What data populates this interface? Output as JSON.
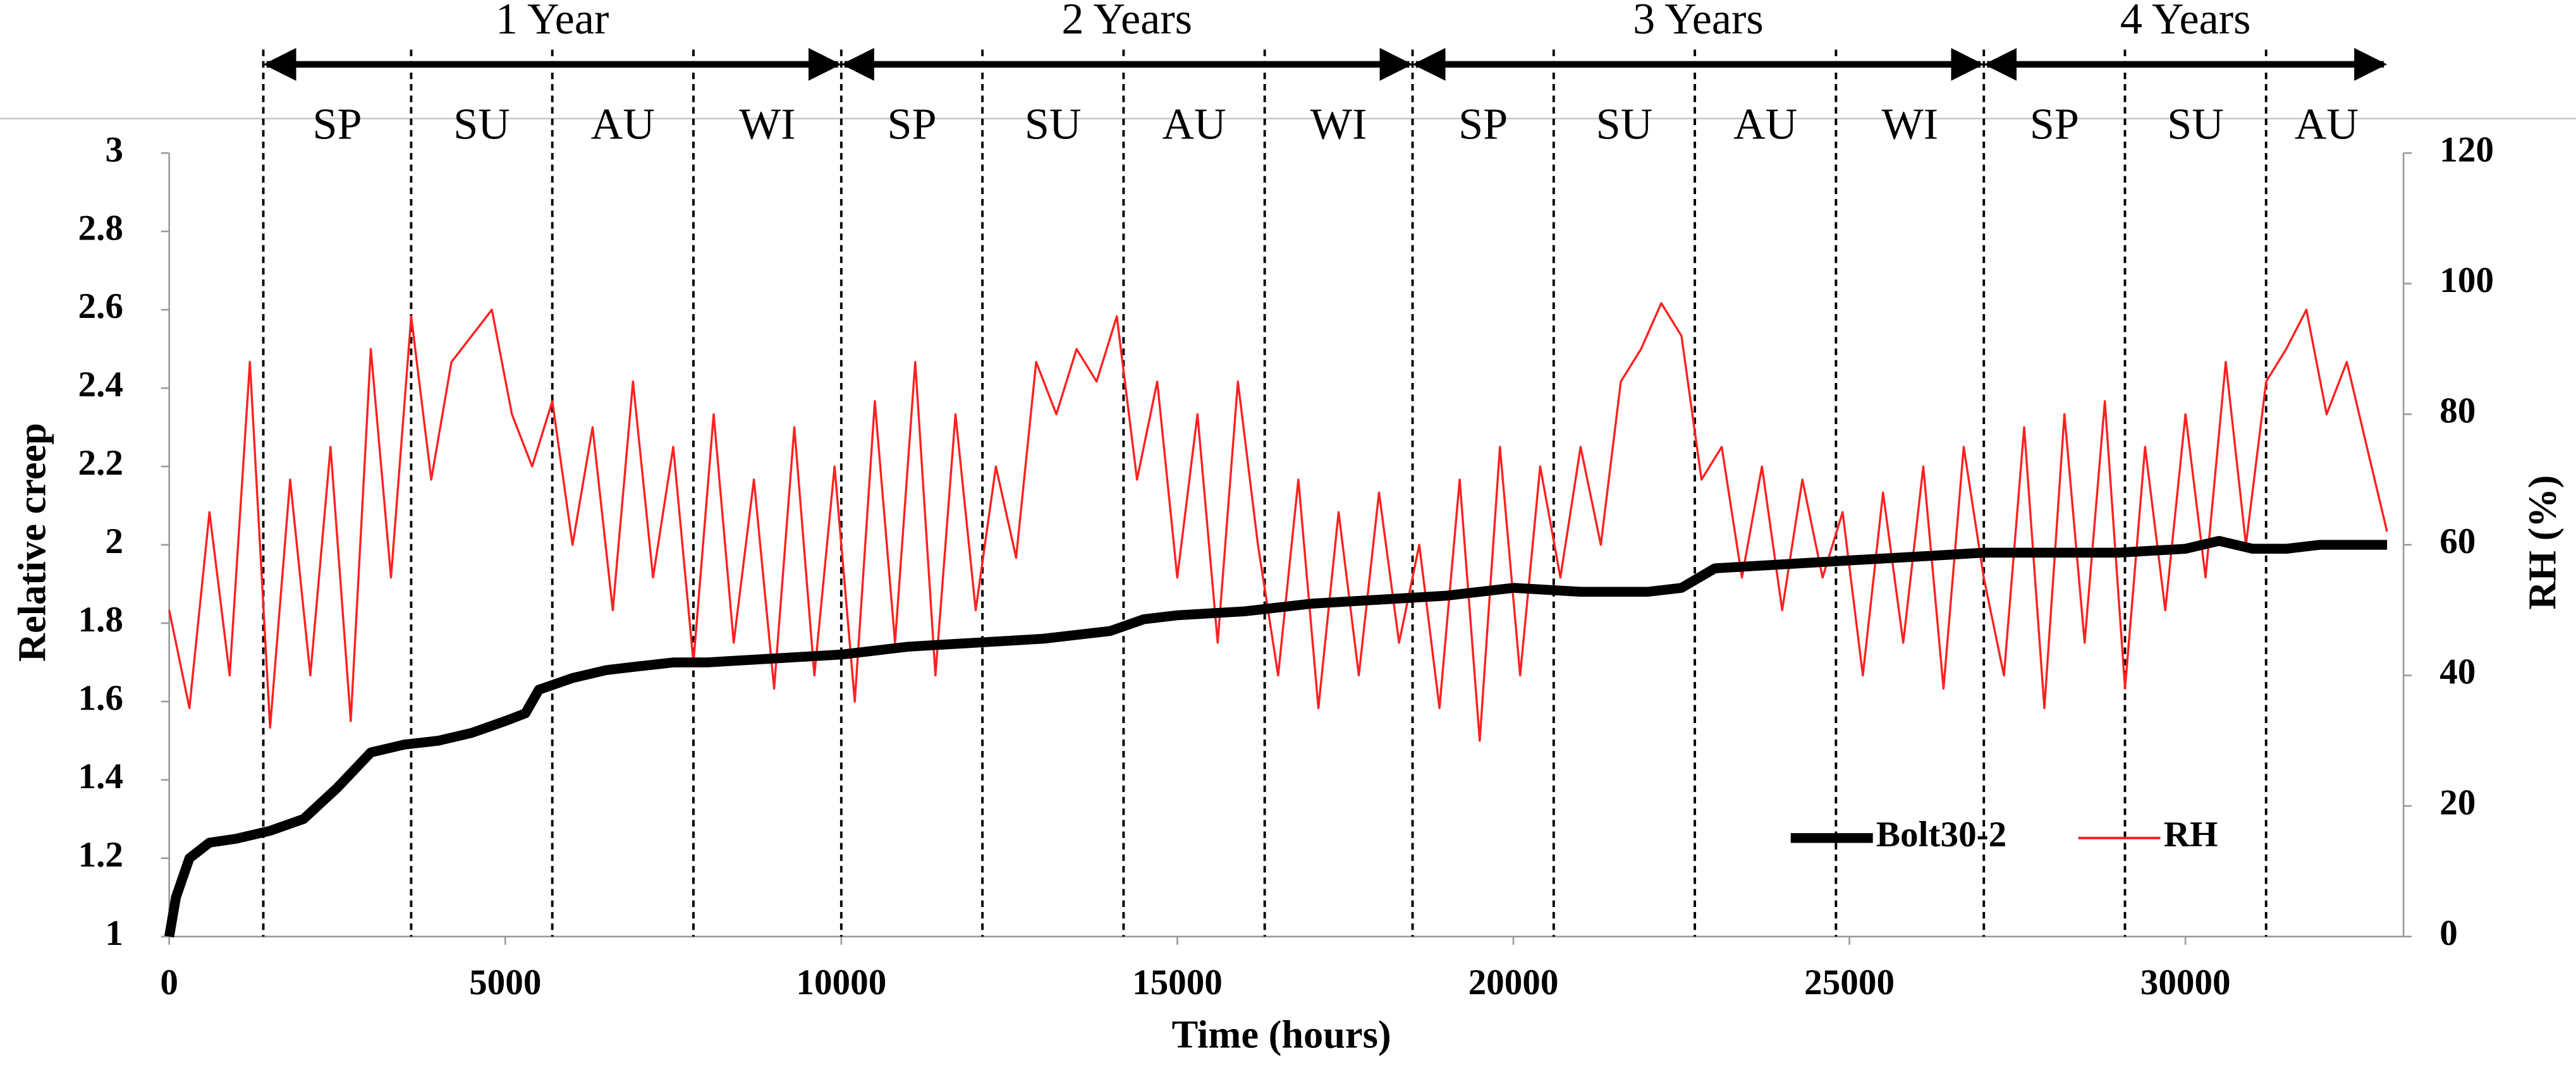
{
  "chart_data": {
    "type": "line",
    "x_label": "Time (hours)",
    "y_label": "Relative creep",
    "y2_label": "RH (%)",
    "xlim": [
      0,
      33000
    ],
    "xticks": [
      0,
      5000,
      10000,
      15000,
      20000,
      25000,
      30000
    ],
    "ylim": [
      1,
      3
    ],
    "yticks": [
      1,
      1.2,
      1.4,
      1.6,
      1.8,
      2,
      2.2,
      2.4,
      2.6,
      2.8,
      3
    ],
    "y2lim": [
      0,
      120
    ],
    "y2ticks": [
      0,
      20,
      40,
      60,
      80,
      100,
      120
    ],
    "legend": "lower right",
    "series": [
      {
        "name": "Bolt30-2",
        "color": "#000000",
        "axis": "y",
        "x": [
          0,
          100,
          300,
          600,
          1000,
          1500,
          2000,
          2500,
          3000,
          3500,
          4000,
          4500,
          5000,
          5300,
          5500,
          6000,
          6500,
          7000,
          7500,
          8000,
          9000,
          10000,
          11000,
          12000,
          13000,
          14000,
          14500,
          15000,
          16000,
          17000,
          18000,
          19000,
          20000,
          21000,
          22000,
          22500,
          23000,
          24000,
          25000,
          26000,
          27000,
          28000,
          29000,
          30000,
          30500,
          31000,
          31500,
          32000,
          33000
        ],
        "values": [
          1.0,
          1.1,
          1.2,
          1.24,
          1.25,
          1.27,
          1.3,
          1.38,
          1.47,
          1.49,
          1.5,
          1.52,
          1.55,
          1.57,
          1.63,
          1.66,
          1.68,
          1.69,
          1.7,
          1.7,
          1.71,
          1.72,
          1.74,
          1.75,
          1.76,
          1.78,
          1.81,
          1.82,
          1.83,
          1.85,
          1.86,
          1.87,
          1.89,
          1.88,
          1.88,
          1.89,
          1.94,
          1.95,
          1.96,
          1.97,
          1.98,
          1.98,
          1.98,
          1.99,
          2.01,
          1.99,
          1.99,
          2.0,
          2.0
        ]
      },
      {
        "name": "RH",
        "color": "#ff2020",
        "axis": "y2",
        "x": [
          0,
          300,
          600,
          900,
          1200,
          1500,
          1800,
          2100,
          2400,
          2700,
          3000,
          3300,
          3600,
          3900,
          4200,
          4500,
          4800,
          5100,
          5400,
          5700,
          6000,
          6300,
          6600,
          6900,
          7200,
          7500,
          7800,
          8100,
          8400,
          8700,
          9000,
          9300,
          9600,
          9900,
          10200,
          10500,
          10800,
          11100,
          11400,
          11700,
          12000,
          12300,
          12600,
          12900,
          13200,
          13500,
          13800,
          14100,
          14400,
          14700,
          15000,
          15300,
          15600,
          15900,
          16200,
          16500,
          16800,
          17100,
          17400,
          17700,
          18000,
          18300,
          18600,
          18900,
          19200,
          19500,
          19800,
          20100,
          20400,
          20700,
          21000,
          21300,
          21600,
          21900,
          22200,
          22500,
          22800,
          23100,
          23400,
          23700,
          24000,
          24300,
          24600,
          24900,
          25200,
          25500,
          25800,
          26100,
          26400,
          26700,
          27000,
          27300,
          27600,
          27900,
          28200,
          28500,
          28800,
          29100,
          29400,
          29700,
          30000,
          30300,
          30600,
          30900,
          31200,
          31500,
          31800,
          32100,
          32400,
          32700,
          33000
        ],
        "values": [
          50,
          35,
          65,
          40,
          88,
          32,
          70,
          40,
          75,
          33,
          90,
          55,
          95,
          70,
          88,
          92,
          96,
          80,
          72,
          82,
          60,
          78,
          50,
          85,
          55,
          75,
          42,
          80,
          45,
          70,
          38,
          78,
          40,
          72,
          36,
          82,
          45,
          88,
          40,
          80,
          50,
          72,
          58,
          88,
          80,
          90,
          85,
          95,
          70,
          85,
          55,
          80,
          45,
          85,
          60,
          40,
          70,
          35,
          65,
          40,
          68,
          45,
          60,
          35,
          70,
          30,
          75,
          40,
          72,
          55,
          75,
          60,
          85,
          90,
          97,
          92,
          70,
          75,
          55,
          72,
          50,
          70,
          55,
          65,
          40,
          68,
          45,
          72,
          38,
          75,
          55,
          40,
          78,
          35,
          80,
          45,
          82,
          38,
          75,
          50,
          80,
          55,
          88,
          60,
          85,
          90,
          96,
          80,
          88,
          75,
          62
        ]
      }
    ],
    "years": [
      {
        "label": "1 Year",
        "start": 1400,
        "end": 10000
      },
      {
        "label": "2 Years",
        "start": 10000,
        "end": 18500
      },
      {
        "label": "3 Years",
        "start": 18500,
        "end": 27000
      },
      {
        "label": "4 Years",
        "start": 27000,
        "end": 33000
      }
    ],
    "seasons": [
      {
        "label": "SP",
        "start": 1400,
        "end": 3600
      },
      {
        "label": "SU",
        "start": 3600,
        "end": 5700
      },
      {
        "label": "AU",
        "start": 5700,
        "end": 7800
      },
      {
        "label": "WI",
        "start": 7800,
        "end": 10000
      },
      {
        "label": "SP",
        "start": 10000,
        "end": 12100
      },
      {
        "label": "SU",
        "start": 12100,
        "end": 14200
      },
      {
        "label": "AU",
        "start": 14200,
        "end": 16300
      },
      {
        "label": "WI",
        "start": 16300,
        "end": 18500
      },
      {
        "label": "SP",
        "start": 18500,
        "end": 20600
      },
      {
        "label": "SU",
        "start": 20600,
        "end": 22700
      },
      {
        "label": "AU",
        "start": 22700,
        "end": 24800
      },
      {
        "label": "WI",
        "start": 24800,
        "end": 27000
      },
      {
        "label": "SP",
        "start": 27000,
        "end": 29100
      },
      {
        "label": "SU",
        "start": 29100,
        "end": 31200
      },
      {
        "label": "AU",
        "start": 31200,
        "end": 33000
      }
    ]
  }
}
